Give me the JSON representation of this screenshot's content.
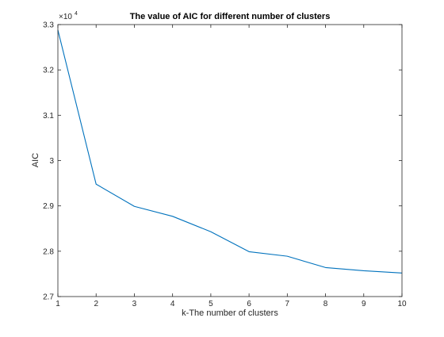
{
  "chart_data": {
    "type": "line",
    "title": "The value of AIC for different number of clusters",
    "xlabel": "k-The number of clusters",
    "ylabel": "AIC",
    "exponent_base": "×10",
    "exponent_power": "4",
    "xlim": [
      1,
      10
    ],
    "ylim": [
      2.7,
      3.3
    ],
    "x_ticks": [
      1,
      2,
      3,
      4,
      5,
      6,
      7,
      8,
      9,
      10
    ],
    "x_tick_labels": [
      "1",
      "2",
      "3",
      "4",
      "5",
      "6",
      "7",
      "8",
      "9",
      "10"
    ],
    "y_ticks": [
      2.7,
      2.8,
      2.9,
      3.0,
      3.1,
      3.2,
      3.3
    ],
    "y_tick_labels": [
      "2.7",
      "2.8",
      "2.9",
      "3",
      "3.1",
      "3.2",
      "3.3"
    ],
    "grid": false,
    "series": [
      {
        "name": "AIC",
        "color": "#0072bd",
        "x": [
          1,
          2,
          3,
          4,
          5,
          6,
          7,
          8,
          9,
          10
        ],
        "y": [
          3.288,
          2.948,
          2.899,
          2.877,
          2.843,
          2.799,
          2.789,
          2.764,
          2.757,
          2.752
        ]
      }
    ]
  }
}
